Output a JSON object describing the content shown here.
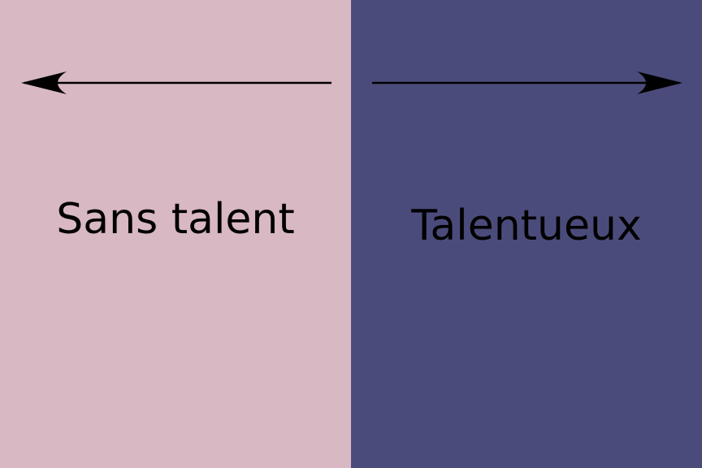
{
  "colors": {
    "left_panel": "#d8b8c3",
    "right_panel": "#4b4b7b",
    "arrow": "#000000",
    "text": "#000000"
  },
  "left": {
    "label": "Sans talent",
    "arrow_direction": "left"
  },
  "right": {
    "label": "Talentueux",
    "arrow_direction": "right"
  }
}
